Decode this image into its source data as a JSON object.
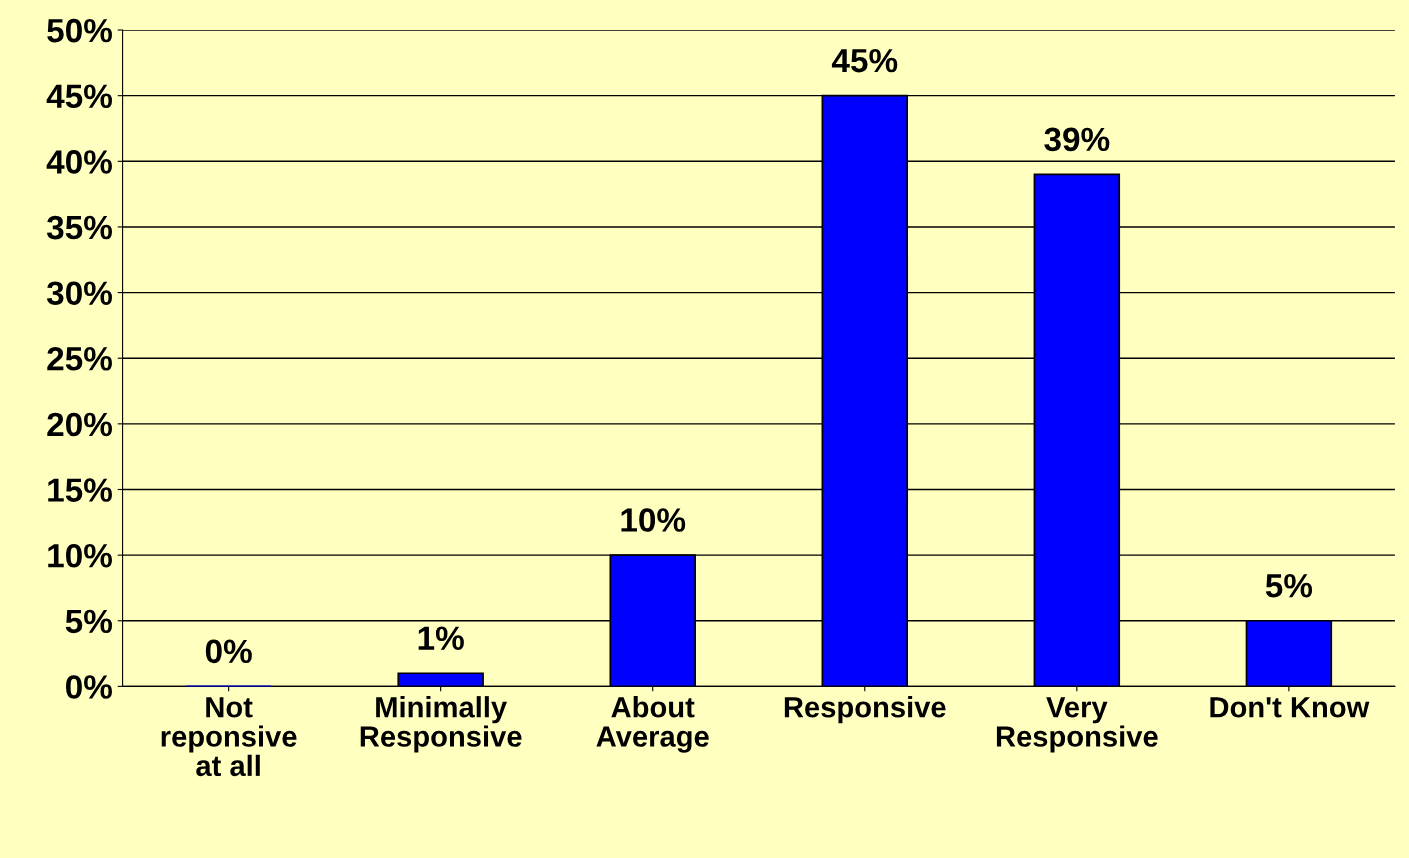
{
  "chart_data": {
    "type": "bar",
    "categories": [
      "Not\nreponsive\nat all",
      "Minimally\nResponsive",
      "About\nAverage",
      "Responsive",
      "Very\nResponsive",
      "Don't Know"
    ],
    "values": [
      0,
      1,
      10,
      45,
      39,
      5
    ],
    "value_labels": [
      "0%",
      "1%",
      "10%",
      "45%",
      "39%",
      "5%"
    ],
    "color": "#0000ff",
    "ylim": [
      0,
      50
    ],
    "yticks": [
      {
        "value": 0,
        "label": "0%"
      },
      {
        "value": 5,
        "label": "5%"
      },
      {
        "value": 10,
        "label": "10%"
      },
      {
        "value": 15,
        "label": "15%"
      },
      {
        "value": 20,
        "label": "20%"
      },
      {
        "value": 25,
        "label": "25%"
      },
      {
        "value": 30,
        "label": "30%"
      },
      {
        "value": 35,
        "label": "35%"
      },
      {
        "value": 40,
        "label": "40%"
      },
      {
        "value": 45,
        "label": "45%"
      },
      {
        "value": 50,
        "label": "50%"
      }
    ],
    "grid": "y",
    "legend": false
  }
}
